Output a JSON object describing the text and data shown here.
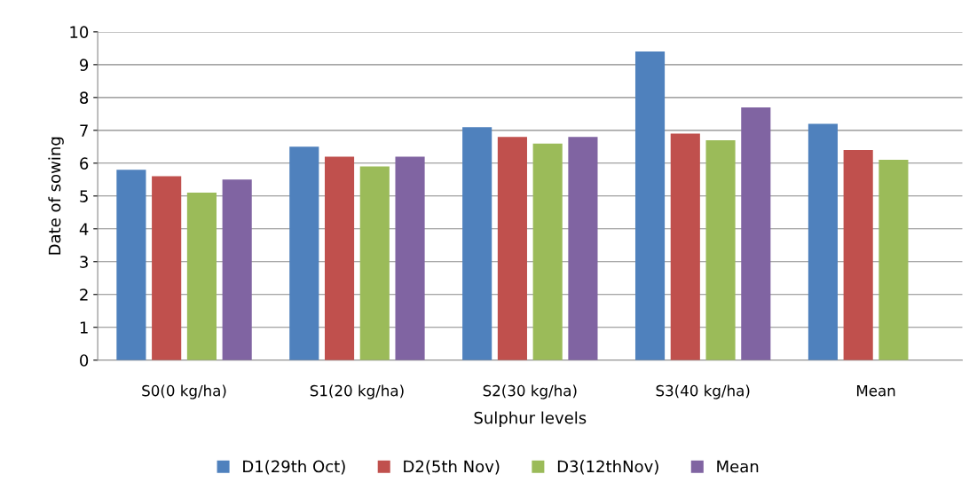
{
  "chart_data": {
    "type": "bar",
    "xlabel": "Sulphur levels",
    "ylabel": "Date of sowing",
    "categories": [
      "S0(0 kg/ha)",
      "S1(20 kg/ha)",
      "S2(30 kg/ha)",
      "S3(40 kg/ha)",
      "Mean"
    ],
    "series": [
      {
        "name": "D1(29th Oct)",
        "color": "#4f81bd",
        "values": [
          5.8,
          6.5,
          7.1,
          9.4,
          7.2
        ]
      },
      {
        "name": "D2(5th Nov)",
        "color": "#c0504d",
        "values": [
          5.6,
          6.2,
          6.8,
          6.9,
          6.4
        ]
      },
      {
        "name": "D3(12thNov)",
        "color": "#9bbb59",
        "values": [
          5.1,
          5.9,
          6.6,
          6.7,
          6.1
        ]
      },
      {
        "name": "Mean",
        "color": "#8064a2",
        "values": [
          5.5,
          6.2,
          6.8,
          7.7,
          null
        ]
      }
    ],
    "ylim": [
      0,
      10
    ],
    "yticks": [
      0,
      1,
      2,
      3,
      4,
      5,
      6,
      7,
      8,
      9,
      10
    ],
    "grid": "y",
    "legend": "bottom"
  }
}
